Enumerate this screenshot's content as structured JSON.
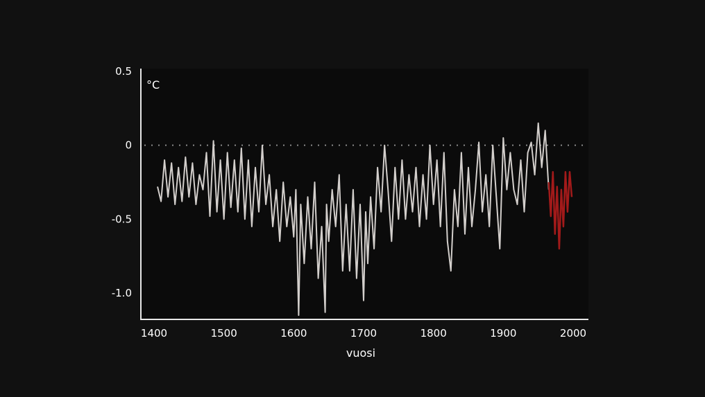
{
  "chart_data": {
    "type": "line",
    "title": "",
    "xlabel": "vuosi",
    "ylabel": "°C",
    "xlim": [
      1400,
      2000
    ],
    "ylim": [
      -1.2,
      0.5
    ],
    "xticks": [
      1400,
      1500,
      1600,
      1700,
      1800,
      1900,
      2000
    ],
    "xtick_labels": [
      "1400",
      "1500",
      "1600",
      "1700",
      "1800",
      "1900",
      "2000"
    ],
    "yticks": [
      0.5,
      0,
      -0.5,
      -1.0
    ],
    "ytick_labels": [
      "0.5",
      "0",
      "-0.5",
      "-1.0"
    ],
    "reference_line": {
      "y": 0,
      "style": "dotted"
    },
    "grid": false,
    "legend": "none",
    "colors": {
      "background": "#111111",
      "plot_area": "#0b0b0b",
      "axis": "#e8e8e8",
      "text": "#ffffff",
      "reconstruction": "#d3cfcc",
      "recent": "#a21a1a",
      "zero_line": "#8a8a8a"
    },
    "series": [
      {
        "color": "#d3cfcc",
        "x": [
          1405,
          1410,
          1415,
          1420,
          1425,
          1430,
          1435,
          1440,
          1445,
          1450,
          1455,
          1460,
          1465,
          1470,
          1475,
          1480,
          1485,
          1490,
          1495,
          1500,
          1505,
          1510,
          1515,
          1520,
          1525,
          1530,
          1535,
          1540,
          1545,
          1550,
          1555,
          1560,
          1565,
          1570,
          1575,
          1580,
          1585,
          1590,
          1595,
          1600,
          1603,
          1607,
          1610,
          1615,
          1620,
          1625,
          1630,
          1635,
          1640,
          1645,
          1647,
          1650,
          1655,
          1660,
          1665,
          1670,
          1675,
          1680,
          1685,
          1690,
          1695,
          1700,
          1703,
          1706,
          1710,
          1715,
          1720,
          1725,
          1730,
          1735,
          1740,
          1745,
          1750,
          1755,
          1760,
          1765,
          1770,
          1775,
          1780,
          1785,
          1790,
          1795,
          1800,
          1805,
          1810,
          1815,
          1820,
          1825,
          1830,
          1835,
          1840,
          1845,
          1850,
          1855,
          1860,
          1865,
          1870,
          1875,
          1880,
          1885,
          1890,
          1895,
          1900,
          1905,
          1910,
          1915,
          1920,
          1925,
          1930,
          1935,
          1940,
          1945,
          1950,
          1955,
          1960,
          1965
        ],
        "y": [
          -0.28,
          -0.38,
          -0.1,
          -0.35,
          -0.12,
          -0.4,
          -0.15,
          -0.38,
          -0.08,
          -0.35,
          -0.12,
          -0.4,
          -0.2,
          -0.3,
          -0.05,
          -0.48,
          0.03,
          -0.45,
          -0.1,
          -0.5,
          -0.05,
          -0.42,
          -0.1,
          -0.45,
          -0.02,
          -0.5,
          -0.1,
          -0.55,
          -0.15,
          -0.45,
          0.0,
          -0.4,
          -0.2,
          -0.55,
          -0.3,
          -0.65,
          -0.25,
          -0.55,
          -0.35,
          -0.62,
          -0.3,
          -1.15,
          -0.4,
          -0.8,
          -0.35,
          -0.7,
          -0.25,
          -0.9,
          -0.55,
          -1.13,
          -0.4,
          -0.65,
          -0.3,
          -0.55,
          -0.2,
          -0.85,
          -0.4,
          -0.85,
          -0.3,
          -0.9,
          -0.4,
          -1.05,
          -0.45,
          -0.8,
          -0.35,
          -0.7,
          -0.15,
          -0.45,
          0.0,
          -0.3,
          -0.65,
          -0.15,
          -0.5,
          -0.1,
          -0.5,
          -0.2,
          -0.45,
          -0.15,
          -0.55,
          -0.2,
          -0.5,
          0.0,
          -0.4,
          -0.1,
          -0.55,
          -0.05,
          -0.65,
          -0.85,
          -0.3,
          -0.55,
          -0.05,
          -0.6,
          -0.15,
          -0.55,
          -0.3,
          0.02,
          -0.45,
          -0.2,
          -0.55,
          0.0,
          -0.35,
          -0.7,
          0.05,
          -0.3,
          -0.05,
          -0.3,
          -0.4,
          -0.1,
          -0.45,
          -0.05,
          0.02,
          -0.2,
          0.15,
          -0.15,
          0.1,
          -0.3
        ]
      },
      {
        "color": "#a21a1a",
        "x": [
          1965,
          1968,
          1971,
          1974,
          1977,
          1980,
          1983,
          1986,
          1989,
          1992,
          1995,
          1998
        ],
        "y": [
          -0.25,
          -0.48,
          -0.18,
          -0.6,
          -0.28,
          -0.7,
          -0.3,
          -0.55,
          -0.18,
          -0.45,
          -0.18,
          -0.35
        ]
      }
    ]
  }
}
